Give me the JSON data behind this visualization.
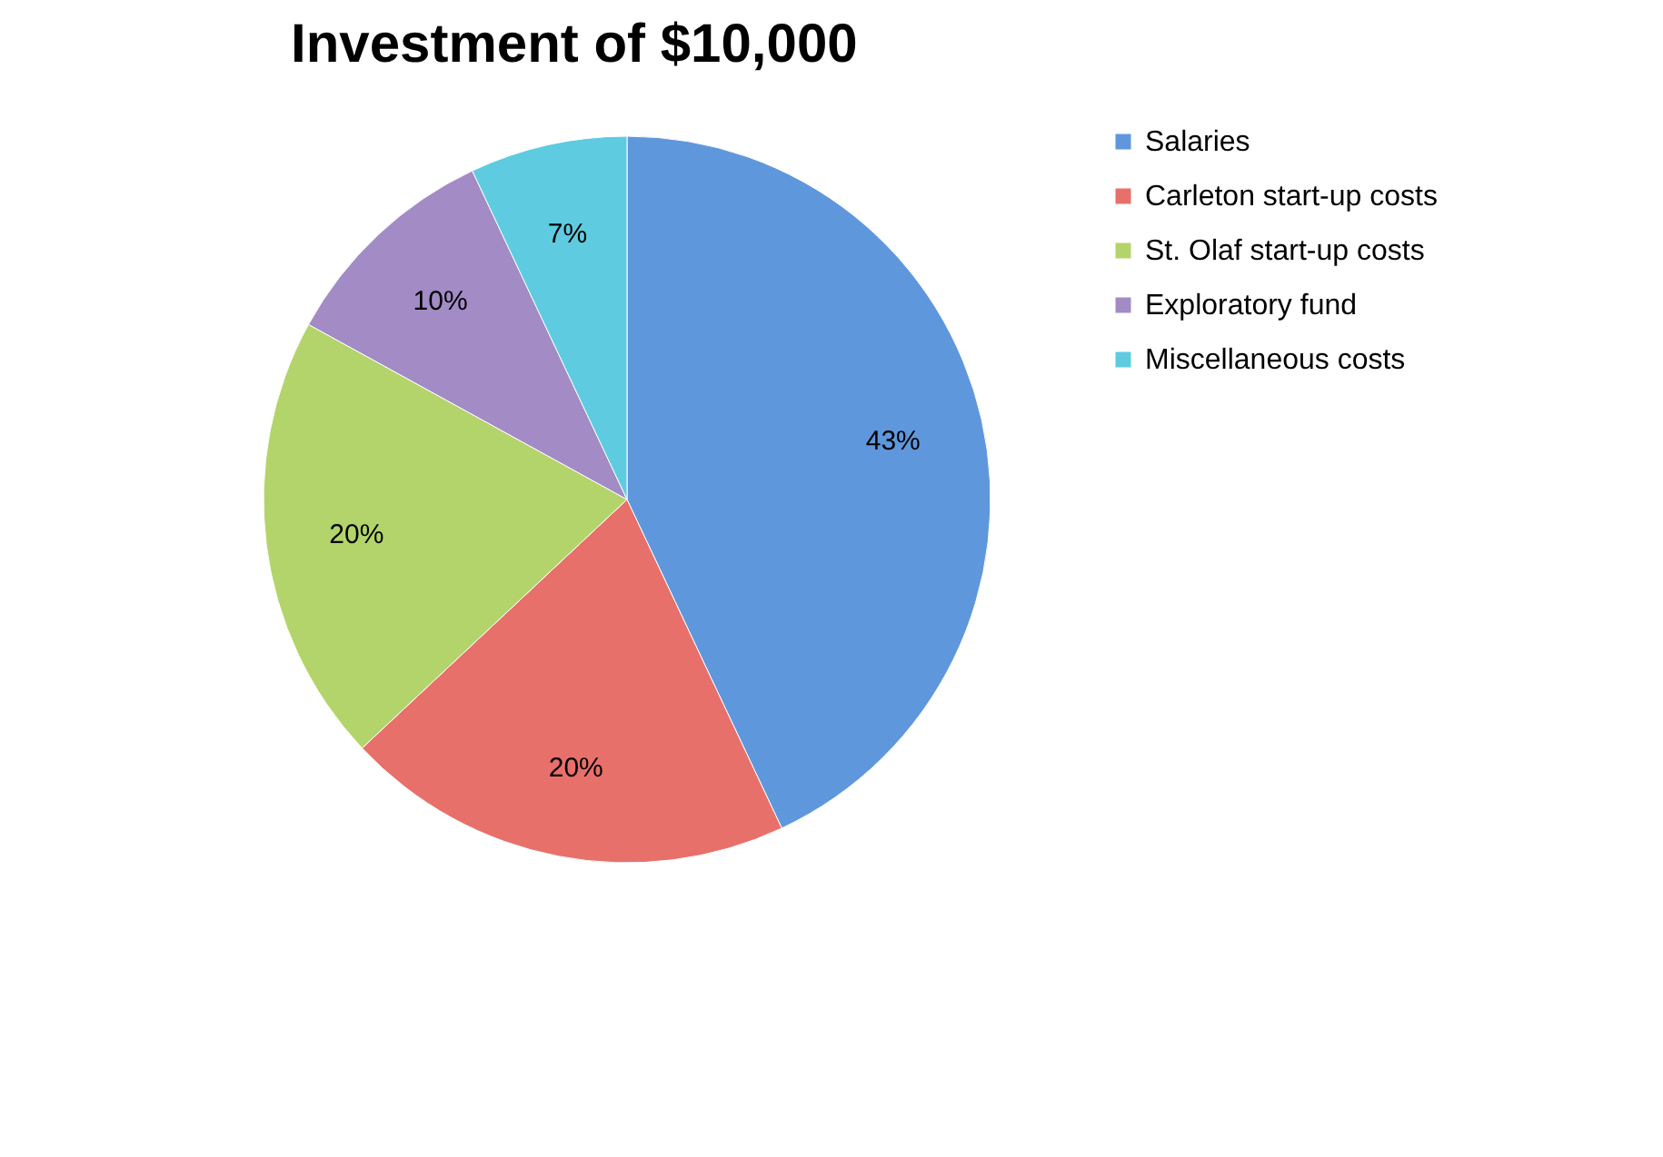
{
  "chart_data": {
    "type": "pie",
    "title": "Investment of $10,000",
    "categories": [
      "Salaries",
      "Carleton start-up costs",
      "St. Olaf start-up costs",
      "Exploratory fund",
      "Miscellaneous costs"
    ],
    "values": [
      43,
      20,
      20,
      10,
      7
    ],
    "colors": [
      "#5f97dc",
      "#e8706a",
      "#b3d46a",
      "#a38bc6",
      "#5fcbe0"
    ],
    "value_labels": [
      "43%",
      "20%",
      "20%",
      "10%",
      "7%"
    ],
    "legend": "right"
  }
}
